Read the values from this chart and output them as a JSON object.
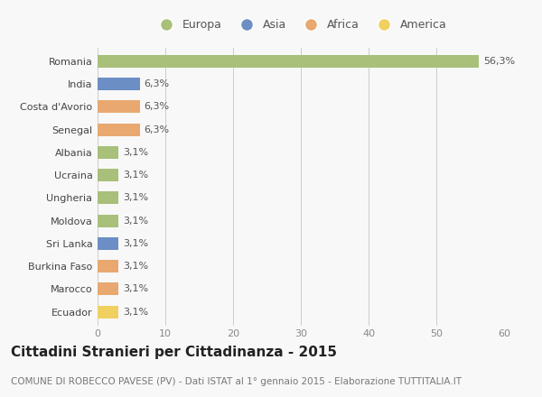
{
  "countries": [
    "Romania",
    "India",
    "Costa d'Avorio",
    "Senegal",
    "Albania",
    "Ucraina",
    "Ungheria",
    "Moldova",
    "Sri Lanka",
    "Burkina Faso",
    "Marocco",
    "Ecuador"
  ],
  "values": [
    56.3,
    6.3,
    6.3,
    6.3,
    3.1,
    3.1,
    3.1,
    3.1,
    3.1,
    3.1,
    3.1,
    3.1
  ],
  "labels": [
    "56,3%",
    "6,3%",
    "6,3%",
    "6,3%",
    "3,1%",
    "3,1%",
    "3,1%",
    "3,1%",
    "3,1%",
    "3,1%",
    "3,1%",
    "3,1%"
  ],
  "colors": [
    "#a8c07a",
    "#6b8ec4",
    "#e8a870",
    "#e8a870",
    "#a8c07a",
    "#a8c07a",
    "#a8c07a",
    "#a8c07a",
    "#6b8ec4",
    "#e8a870",
    "#e8a870",
    "#f0d060"
  ],
  "legend_labels": [
    "Europa",
    "Asia",
    "Africa",
    "America"
  ],
  "legend_colors": [
    "#a8c07a",
    "#6b8ec4",
    "#e8a870",
    "#f0d060"
  ],
  "title": "Cittadini Stranieri per Cittadinanza - 2015",
  "subtitle": "COMUNE DI ROBECCO PAVESE (PV) - Dati ISTAT al 1° gennaio 2015 - Elaborazione TUTTITALIA.IT",
  "xlim": [
    0,
    60
  ],
  "xticks": [
    0,
    10,
    20,
    30,
    40,
    50,
    60
  ],
  "background_color": "#f8f8f8",
  "bar_height": 0.55,
  "title_fontsize": 11,
  "subtitle_fontsize": 7.5,
  "label_fontsize": 8,
  "ytick_fontsize": 8,
  "xtick_fontsize": 8
}
